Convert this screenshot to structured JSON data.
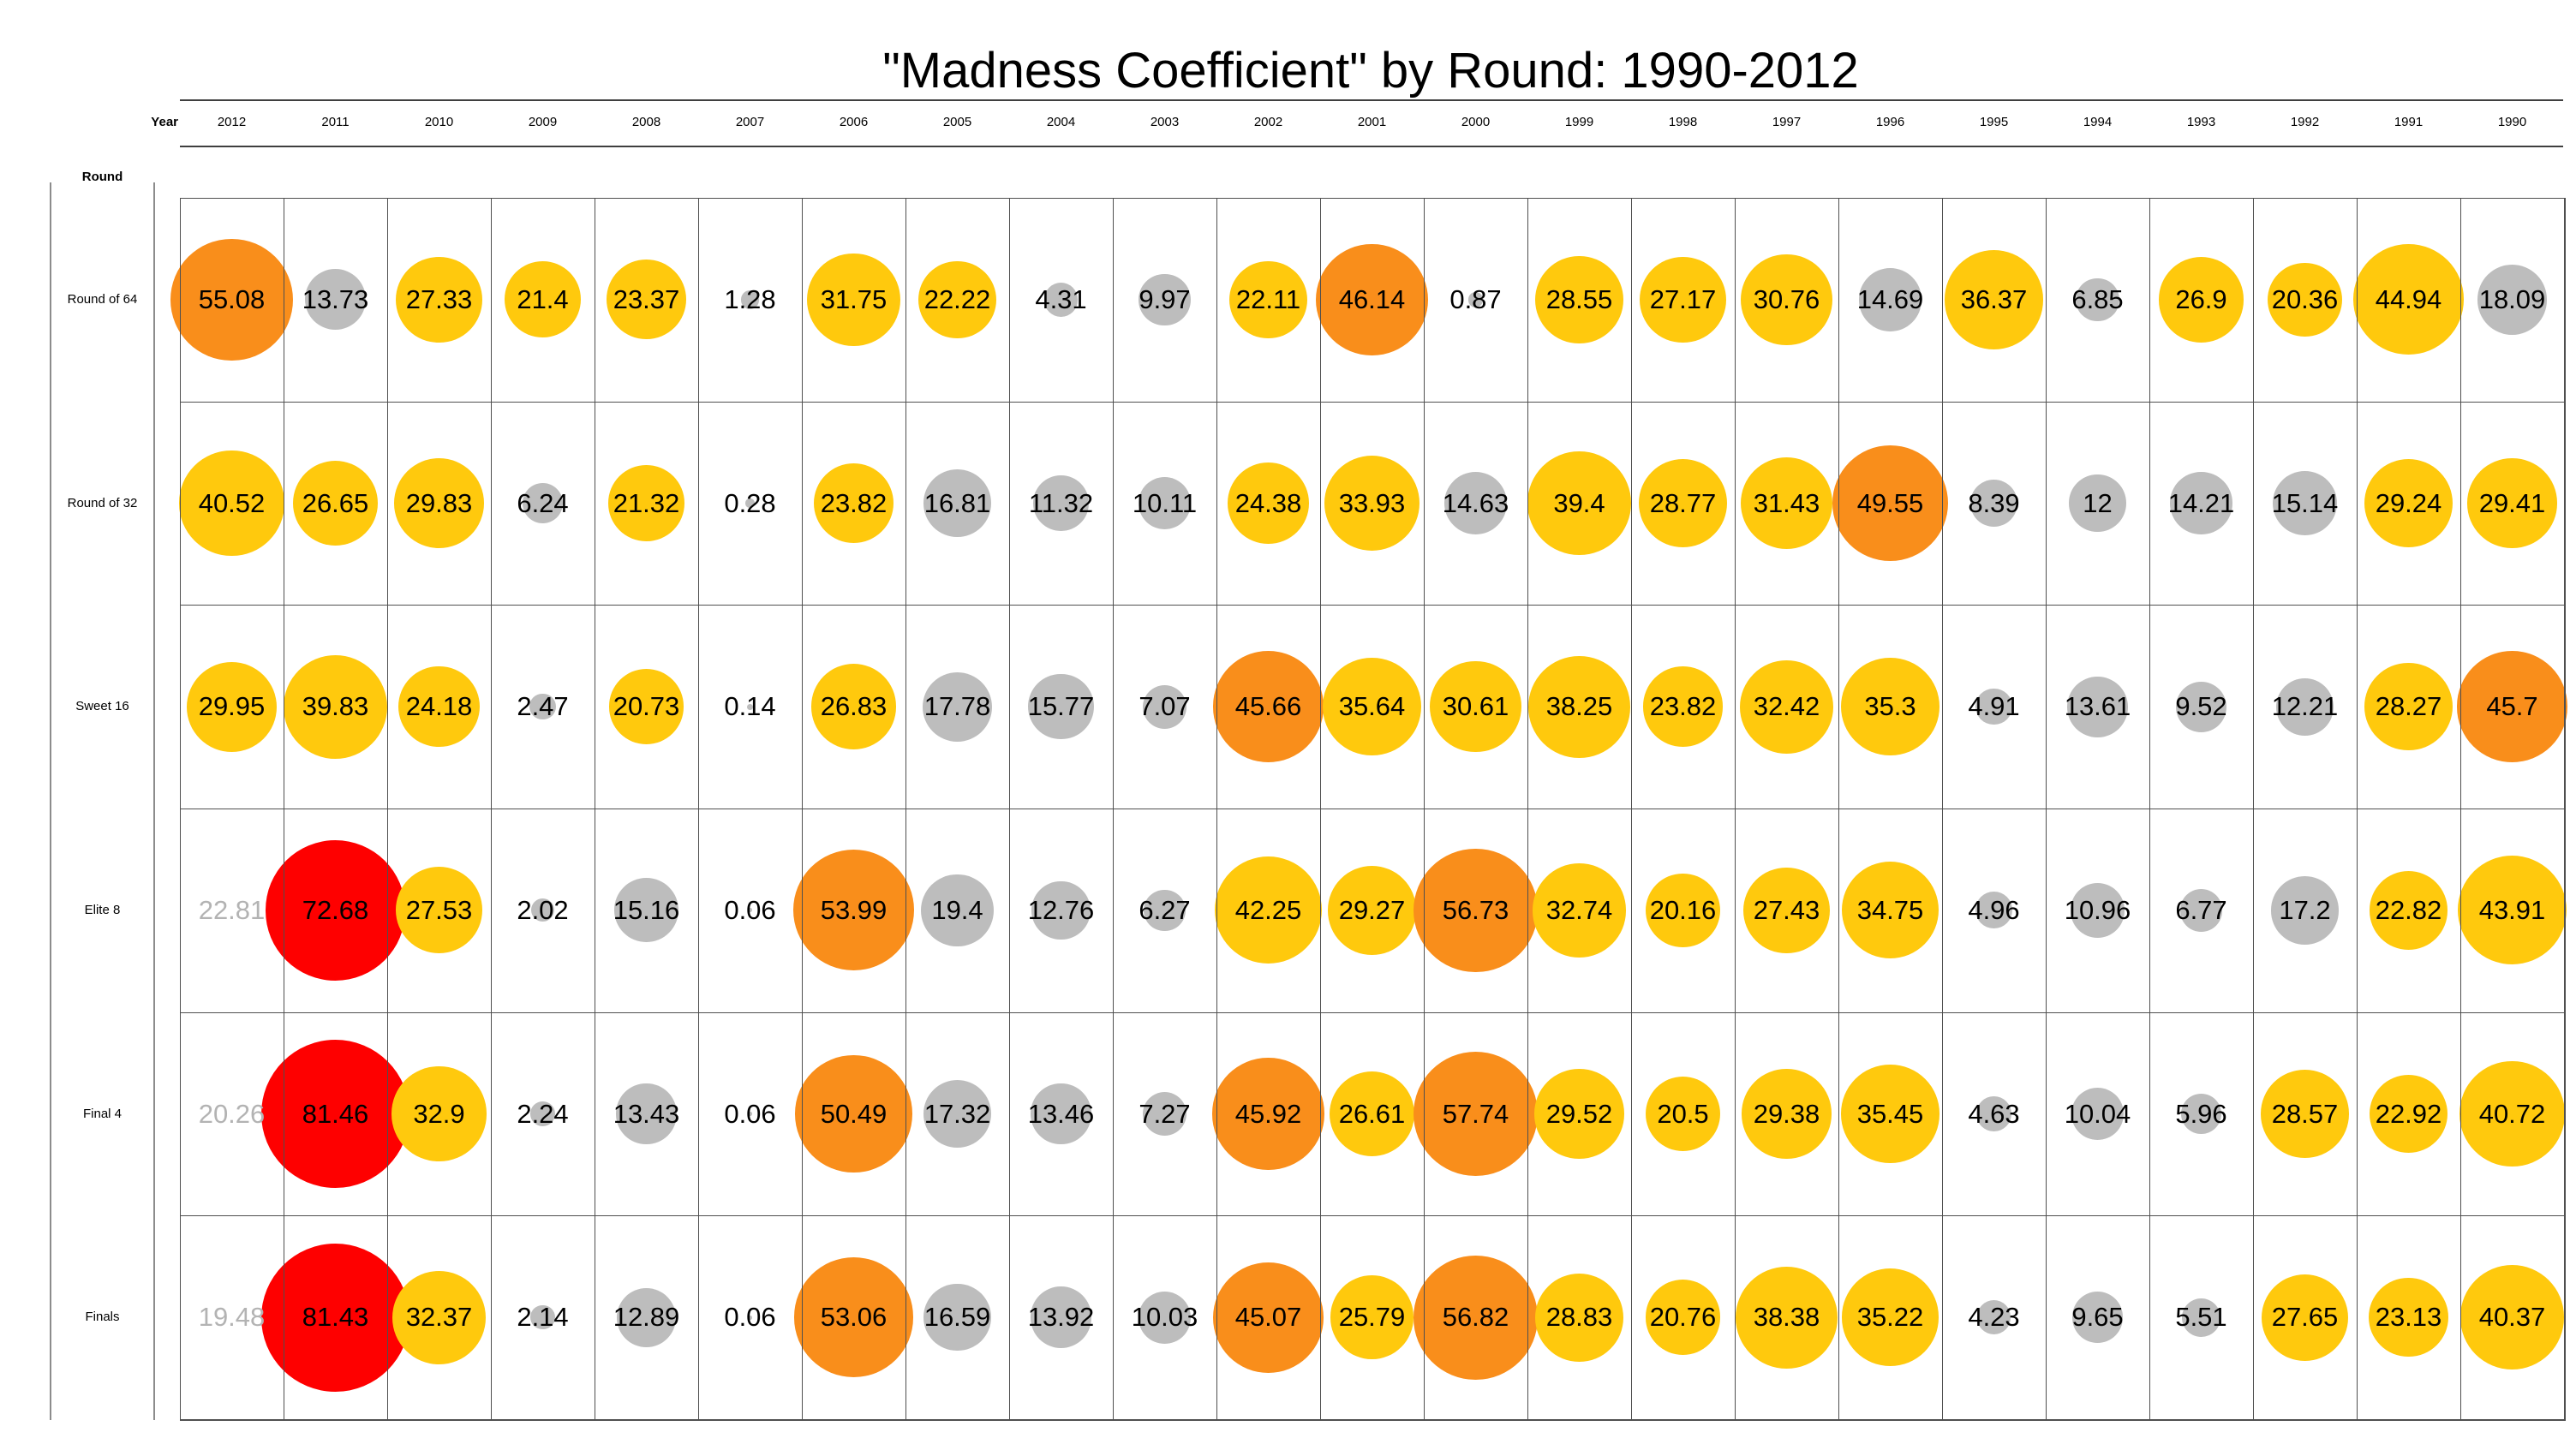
{
  "title": "\"Madness Coefficient\" by Round: 1990-2012",
  "axes": {
    "col_header": "Year",
    "row_header": "Round"
  },
  "chart_data": {
    "type": "bubble-matrix",
    "title": "\"Madness Coefficient\" by Round: 1990-2012",
    "xlabel": "Year",
    "ylabel": "Round",
    "legend": "none",
    "grid": true,
    "columns": [
      "2012",
      "2011",
      "2010",
      "2009",
      "2008",
      "2007",
      "2006",
      "2005",
      "2004",
      "2003",
      "2002",
      "2001",
      "2000",
      "1999",
      "1998",
      "1997",
      "1996",
      "1995",
      "1994",
      "1993",
      "1992",
      "1991",
      "1990"
    ],
    "rows": [
      "Round of 64",
      "Round of 32",
      "Sweet 16",
      "Elite 8",
      "Final 4",
      "Finals"
    ],
    "values": [
      [
        "55.08",
        "13.73",
        "27.33",
        "21.4",
        "23.37",
        "1.28",
        "31.75",
        "22.22",
        "4.31",
        "9.97",
        "22.11",
        "46.14",
        "0.87",
        "28.55",
        "27.17",
        "30.76",
        "14.69",
        "36.37",
        "6.85",
        "26.9",
        "20.36",
        "44.94",
        "18.09"
      ],
      [
        "40.52",
        "26.65",
        "29.83",
        "6.24",
        "21.32",
        "0.28",
        "23.82",
        "16.81",
        "11.32",
        "10.11",
        "24.38",
        "33.93",
        "14.63",
        "39.4",
        "28.77",
        "31.43",
        "49.55",
        "8.39",
        "12",
        "14.21",
        "15.14",
        "29.24",
        "29.41"
      ],
      [
        "29.95",
        "39.83",
        "24.18",
        "2.47",
        "20.73",
        "0.14",
        "26.83",
        "17.78",
        "15.77",
        "7.07",
        "45.66",
        "35.64",
        "30.61",
        "38.25",
        "23.82",
        "32.42",
        "35.3",
        "4.91",
        "13.61",
        "9.52",
        "12.21",
        "28.27",
        "45.7"
      ],
      [
        "22.81",
        "72.68",
        "27.53",
        "2.02",
        "15.16",
        "0.06",
        "53.99",
        "19.4",
        "12.76",
        "6.27",
        "42.25",
        "29.27",
        "56.73",
        "32.74",
        "20.16",
        "27.43",
        "34.75",
        "4.96",
        "10.96",
        "6.77",
        "17.2",
        "22.82",
        "43.91"
      ],
      [
        "20.26",
        "81.46",
        "32.9",
        "2.24",
        "13.43",
        "0.06",
        "50.49",
        "17.32",
        "13.46",
        "7.27",
        "45.92",
        "26.61",
        "57.74",
        "29.52",
        "20.5",
        "29.38",
        "35.45",
        "4.63",
        "10.04",
        "5.96",
        "28.57",
        "22.92",
        "40.72"
      ],
      [
        "19.48",
        "81.43",
        "32.37",
        "2.14",
        "12.89",
        "0.06",
        "53.06",
        "16.59",
        "13.92",
        "10.03",
        "45.07",
        "25.79",
        "56.82",
        "28.83",
        "20.76",
        "38.38",
        "35.22",
        "4.23",
        "9.65",
        "5.51",
        "27.65",
        "23.13",
        "40.37"
      ]
    ],
    "no_circle_cells": [
      [
        3,
        0
      ],
      [
        4,
        0
      ],
      [
        5,
        0
      ]
    ],
    "muted_text_color": "#b3b3b3",
    "colors": {
      "low": "#bdbdbd",
      "mid": "#ffc90d",
      "high": "#f98e1b",
      "extreme": "#fe0000"
    },
    "thresholds": {
      "mid": 20,
      "high": 45,
      "extreme": 60
    },
    "size_encoding": "circle area proportional to value"
  }
}
